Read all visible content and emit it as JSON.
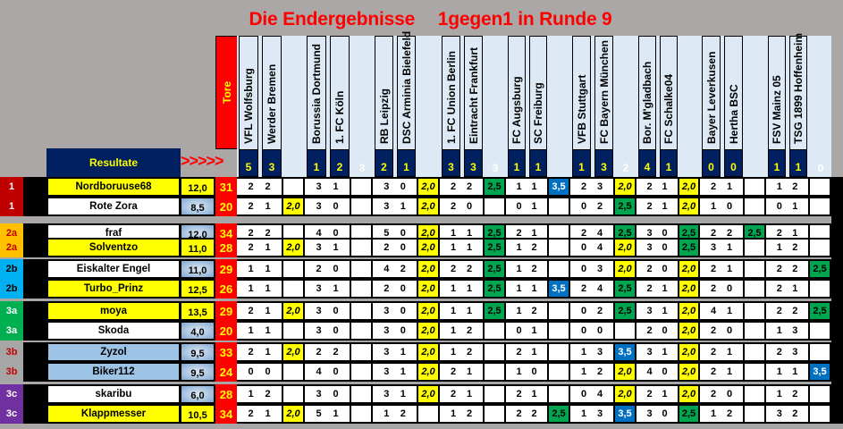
{
  "title": {
    "part1": "Die Endergebnisse",
    "part2": "1gegen1 in Runde 9"
  },
  "header": {
    "tore_label": "Tore",
    "resultate_label": "Resultate",
    "arrows": ">>>>>",
    "teams": [
      {
        "name": "VFL Wolfsburg",
        "goals": "5"
      },
      {
        "name": "Werder Bremen",
        "goals": "3"
      },
      {
        "name": "Borussia Dortmund",
        "goals": "1"
      },
      {
        "name": "1. FC Köln",
        "goals": "2"
      },
      {
        "name": "RB Leipzig",
        "goals": "2"
      },
      {
        "name": "DSC Arminia Bielefeld",
        "goals": "1"
      },
      {
        "name": "1. FC Union Berlin",
        "goals": "3"
      },
      {
        "name": "Eintracht Frankfurt",
        "goals": "3"
      },
      {
        "name": "FC Augsburg",
        "goals": "1"
      },
      {
        "name": "SC Freiburg",
        "goals": "1"
      },
      {
        "name": "VFB Stuttgart",
        "goals": "1"
      },
      {
        "name": "FC Bayern München",
        "goals": "3"
      },
      {
        "name": "Bor. M'gladbach",
        "goals": "4"
      },
      {
        "name": "FC Schalke04",
        "goals": "1"
      },
      {
        "name": "Bayer Leverkusen",
        "goals": "0"
      },
      {
        "name": "Hertha BSC",
        "goals": "0"
      },
      {
        "name": "FSV Mainz 05",
        "goals": "1"
      },
      {
        "name": "TSG 1899 Hoffenheim",
        "goals": "1"
      }
    ],
    "match_totals": [
      "",
      "3",
      "",
      "3",
      "",
      "2",
      "",
      "",
      "0"
    ]
  },
  "colors": {
    "background": "#aba7a6",
    "title": "#ff0000",
    "header_navy": "#002060",
    "header_text": "#ffff00",
    "pts_yellow": "#ffff00",
    "pts_green": "#00a550",
    "pts_blue": "#0070c0",
    "tore_red": "#ff0000",
    "group_1": "#c00000",
    "group_2a": "#ffc000",
    "group_2b": "#00b0f0",
    "group_3a": "#00b050",
    "group_3b": "#a6a6a6",
    "group_3c": "#7030a0"
  },
  "rows": [
    {
      "group": "1",
      "name": "Nordboruuse68",
      "value": "12,0",
      "tore": "31",
      "matches": [
        [
          "2",
          "2",
          ""
        ],
        [
          "3",
          "1",
          ""
        ],
        [
          "3",
          "0",
          "2,0"
        ],
        [
          "2",
          "2",
          "2,5"
        ],
        [
          "1",
          "1",
          "3,5"
        ],
        [
          "2",
          "3",
          "2,0"
        ],
        [
          "2",
          "1",
          "2,0"
        ],
        [
          "2",
          "1",
          ""
        ],
        [
          "1",
          "2",
          ""
        ]
      ]
    },
    {
      "group": "1",
      "name": "Rote Zora",
      "value": "8,5",
      "tore": "20",
      "matches": [
        [
          "2",
          "1",
          "2,0"
        ],
        [
          "3",
          "0",
          ""
        ],
        [
          "3",
          "1",
          "2,0"
        ],
        [
          "2",
          "0",
          ""
        ],
        [
          "0",
          "1",
          ""
        ],
        [
          "0",
          "2",
          "2,5"
        ],
        [
          "2",
          "1",
          "2,0"
        ],
        [
          "1",
          "0",
          ""
        ],
        [
          "0",
          "1",
          ""
        ]
      ]
    },
    {
      "group": "2a",
      "name": "fraf",
      "value": "12,0",
      "tore": "34",
      "matches": [
        [
          "2",
          "2",
          ""
        ],
        [
          "4",
          "0",
          ""
        ],
        [
          "5",
          "0",
          "2,0"
        ],
        [
          "1",
          "1",
          "2,5"
        ],
        [
          "2",
          "1",
          ""
        ],
        [
          "2",
          "4",
          "2,5"
        ],
        [
          "3",
          "0",
          "2,5"
        ],
        [
          "2",
          "2",
          "2,5"
        ],
        [
          "2",
          "1",
          ""
        ]
      ]
    },
    {
      "group": "2a",
      "name": "Solventzo",
      "value": "11,0",
      "tore": "28",
      "matches": [
        [
          "2",
          "1",
          "2,0"
        ],
        [
          "3",
          "1",
          ""
        ],
        [
          "2",
          "0",
          "2,0"
        ],
        [
          "1",
          "1",
          "2,5"
        ],
        [
          "1",
          "2",
          ""
        ],
        [
          "0",
          "4",
          "2,0"
        ],
        [
          "3",
          "0",
          "2,5"
        ],
        [
          "3",
          "1",
          ""
        ],
        [
          "1",
          "2",
          ""
        ]
      ]
    },
    {
      "group": "2b",
      "name": "Eiskalter Engel",
      "value": "11,0",
      "tore": "29",
      "matches": [
        [
          "1",
          "1",
          ""
        ],
        [
          "2",
          "0",
          ""
        ],
        [
          "4",
          "2",
          "2,0"
        ],
        [
          "2",
          "2",
          "2,5"
        ],
        [
          "1",
          "2",
          ""
        ],
        [
          "0",
          "3",
          "2,0"
        ],
        [
          "2",
          "0",
          "2,0"
        ],
        [
          "2",
          "1",
          ""
        ],
        [
          "2",
          "2",
          "2,5"
        ]
      ]
    },
    {
      "group": "2b",
      "name": "Turbo_Prinz",
      "value": "12,5",
      "tore": "26",
      "matches": [
        [
          "1",
          "1",
          ""
        ],
        [
          "3",
          "1",
          ""
        ],
        [
          "2",
          "0",
          "2,0"
        ],
        [
          "1",
          "1",
          "2,5"
        ],
        [
          "1",
          "1",
          "3,5"
        ],
        [
          "2",
          "4",
          "2,5"
        ],
        [
          "2",
          "1",
          "2,0"
        ],
        [
          "2",
          "0",
          ""
        ],
        [
          "2",
          "1",
          ""
        ]
      ]
    },
    {
      "group": "3a",
      "name": "moya",
      "value": "13,5",
      "tore": "29",
      "matches": [
        [
          "2",
          "1",
          "2,0"
        ],
        [
          "3",
          "0",
          ""
        ],
        [
          "3",
          "0",
          "2,0"
        ],
        [
          "1",
          "1",
          "2,5"
        ],
        [
          "1",
          "2",
          ""
        ],
        [
          "0",
          "2",
          "2,5"
        ],
        [
          "3",
          "1",
          "2,0"
        ],
        [
          "4",
          "1",
          ""
        ],
        [
          "2",
          "2",
          "2,5"
        ]
      ]
    },
    {
      "group": "3a",
      "name": "Skoda",
      "value": "4,0",
      "tore": "20",
      "matches": [
        [
          "1",
          "1",
          ""
        ],
        [
          "3",
          "0",
          ""
        ],
        [
          "3",
          "0",
          "2,0"
        ],
        [
          "1",
          "2",
          ""
        ],
        [
          "0",
          "1",
          ""
        ],
        [
          "0",
          "0",
          ""
        ],
        [
          "2",
          "0",
          "2,0"
        ],
        [
          "2",
          "0",
          ""
        ],
        [
          "1",
          "3",
          ""
        ]
      ]
    },
    {
      "group": "3b",
      "name": "Zyzol",
      "value": "9,5",
      "tore": "33",
      "matches": [
        [
          "2",
          "1",
          "2,0"
        ],
        [
          "2",
          "2",
          ""
        ],
        [
          "3",
          "1",
          "2,0"
        ],
        [
          "1",
          "2",
          ""
        ],
        [
          "2",
          "1",
          ""
        ],
        [
          "1",
          "3",
          "3,5"
        ],
        [
          "3",
          "1",
          "2,0"
        ],
        [
          "2",
          "1",
          ""
        ],
        [
          "2",
          "3",
          ""
        ]
      ]
    },
    {
      "group": "3b",
      "name": "Biker112",
      "value": "9,5",
      "tore": "24",
      "matches": [
        [
          "0",
          "0",
          ""
        ],
        [
          "4",
          "0",
          ""
        ],
        [
          "3",
          "1",
          "2,0"
        ],
        [
          "2",
          "1",
          ""
        ],
        [
          "1",
          "0",
          ""
        ],
        [
          "1",
          "2",
          "2,0"
        ],
        [
          "4",
          "0",
          "2,0"
        ],
        [
          "2",
          "1",
          ""
        ],
        [
          "1",
          "1",
          "3,5"
        ]
      ]
    },
    {
      "group": "3c",
      "name": "skaribu",
      "value": "6,0",
      "tore": "28",
      "matches": [
        [
          "1",
          "2",
          ""
        ],
        [
          "3",
          "0",
          ""
        ],
        [
          "3",
          "1",
          "2,0"
        ],
        [
          "2",
          "1",
          ""
        ],
        [
          "2",
          "1",
          ""
        ],
        [
          "0",
          "4",
          "2,0"
        ],
        [
          "2",
          "1",
          "2,0"
        ],
        [
          "2",
          "0",
          ""
        ],
        [
          "1",
          "2",
          ""
        ]
      ]
    },
    {
      "group": "3c",
      "name": "Klappmesser",
      "value": "10,5",
      "tore": "34",
      "matches": [
        [
          "2",
          "1",
          "2,0"
        ],
        [
          "5",
          "1",
          ""
        ],
        [
          "1",
          "2",
          ""
        ],
        [
          "1",
          "2",
          ""
        ],
        [
          "2",
          "2",
          "2,5"
        ],
        [
          "1",
          "3",
          "3,5"
        ],
        [
          "3",
          "0",
          "2,5"
        ],
        [
          "1",
          "2",
          ""
        ],
        [
          "3",
          "2",
          ""
        ]
      ]
    }
  ]
}
